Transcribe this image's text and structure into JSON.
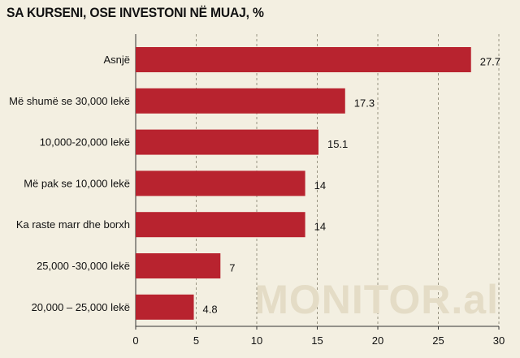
{
  "chart_data": {
    "type": "bar",
    "orientation": "horizontal",
    "title": "SA KURSENI, OSE INVESTONI NË MUAJ, %",
    "categories": [
      "Asnjë",
      "Më shumë se 30,000 lekë",
      "10,000-20,000 lekë",
      "Më pak se 10,000 lekë",
      "Ka raste marr dhe borxh",
      "25,000 -30,000 lekë",
      "20,000 – 25,000 lekë"
    ],
    "values": [
      27.7,
      17.3,
      15.1,
      14,
      14,
      7,
      4.8
    ],
    "value_labels": [
      "27.7",
      "17.3",
      "15.1",
      "14",
      "14",
      "7",
      "4.8"
    ],
    "xlim": [
      0,
      30
    ],
    "xticks": [
      0,
      5,
      10,
      15,
      20,
      25,
      30
    ],
    "grid": "vertical dashed",
    "bar_color": "#b8232f",
    "watermark": "MONITOR.al"
  }
}
